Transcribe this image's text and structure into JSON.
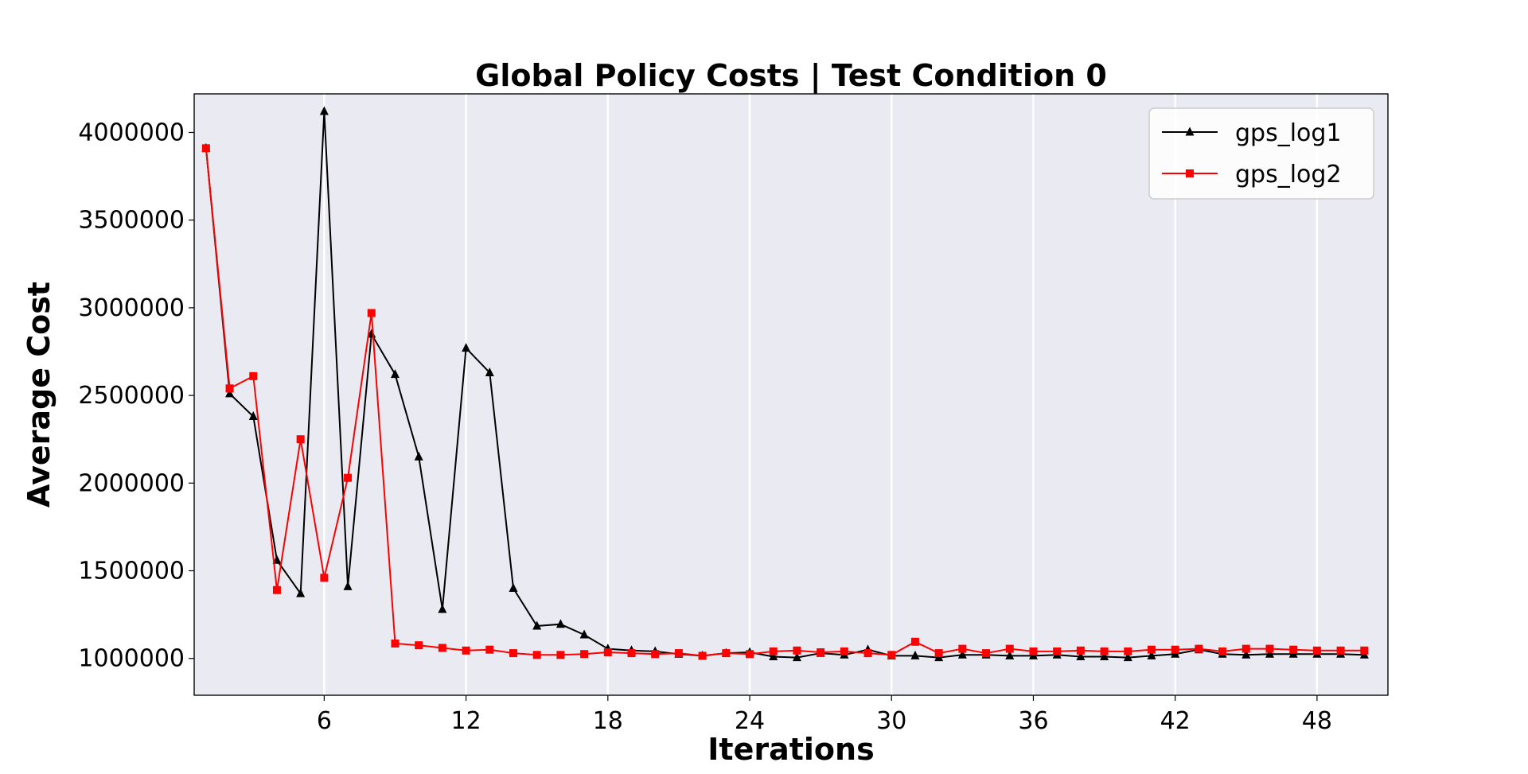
{
  "chart_data": {
    "type": "line",
    "title": "Global Policy Costs | Test Condition 0",
    "xlabel": "Iterations",
    "ylabel": "Average Cost",
    "xlim": [
      0.5,
      51.0
    ],
    "ylim": [
      790000,
      4220000
    ],
    "xticks": [
      6,
      12,
      18,
      24,
      30,
      36,
      42,
      48
    ],
    "yticks": [
      1000000,
      1500000,
      2000000,
      2500000,
      3000000,
      3500000,
      4000000
    ],
    "grid": "vertical",
    "background": "#eaeaf2",
    "legend_position": "top-right",
    "x": [
      1,
      2,
      3,
      4,
      5,
      6,
      7,
      8,
      9,
      10,
      11,
      12,
      13,
      14,
      15,
      16,
      17,
      18,
      19,
      20,
      21,
      22,
      23,
      24,
      25,
      26,
      27,
      28,
      29,
      30,
      31,
      32,
      33,
      34,
      35,
      36,
      37,
      38,
      39,
      40,
      41,
      42,
      43,
      44,
      45,
      46,
      47,
      48,
      49,
      50
    ],
    "series": [
      {
        "name": "gps_log1",
        "color": "#000000",
        "marker": "triangle",
        "values": [
          3910000,
          2510000,
          2380000,
          1560000,
          1370000,
          4120000,
          1410000,
          2850000,
          2620000,
          2150000,
          1280000,
          2770000,
          2630000,
          1400000,
          1185000,
          1195000,
          1135000,
          1055000,
          1045000,
          1040000,
          1025000,
          1015000,
          1030000,
          1035000,
          1010000,
          1005000,
          1030000,
          1020000,
          1050000,
          1015000,
          1015000,
          1005000,
          1020000,
          1020000,
          1015000,
          1015000,
          1020000,
          1010000,
          1010000,
          1005000,
          1015000,
          1025000,
          1050000,
          1025000,
          1020000,
          1025000,
          1025000,
          1025000,
          1025000,
          1020000
        ]
      },
      {
        "name": "gps_log2",
        "color": "#ff0000",
        "marker": "square",
        "values": [
          3910000,
          2540000,
          2610000,
          1390000,
          2250000,
          1460000,
          2030000,
          2970000,
          1085000,
          1075000,
          1060000,
          1045000,
          1050000,
          1030000,
          1020000,
          1020000,
          1025000,
          1035000,
          1030000,
          1025000,
          1030000,
          1015000,
          1030000,
          1025000,
          1040000,
          1045000,
          1035000,
          1040000,
          1030000,
          1020000,
          1095000,
          1030000,
          1055000,
          1030000,
          1055000,
          1040000,
          1040000,
          1045000,
          1040000,
          1040000,
          1050000,
          1050000,
          1055000,
          1040000,
          1055000,
          1055000,
          1050000,
          1045000,
          1045000,
          1045000
        ]
      }
    ]
  }
}
